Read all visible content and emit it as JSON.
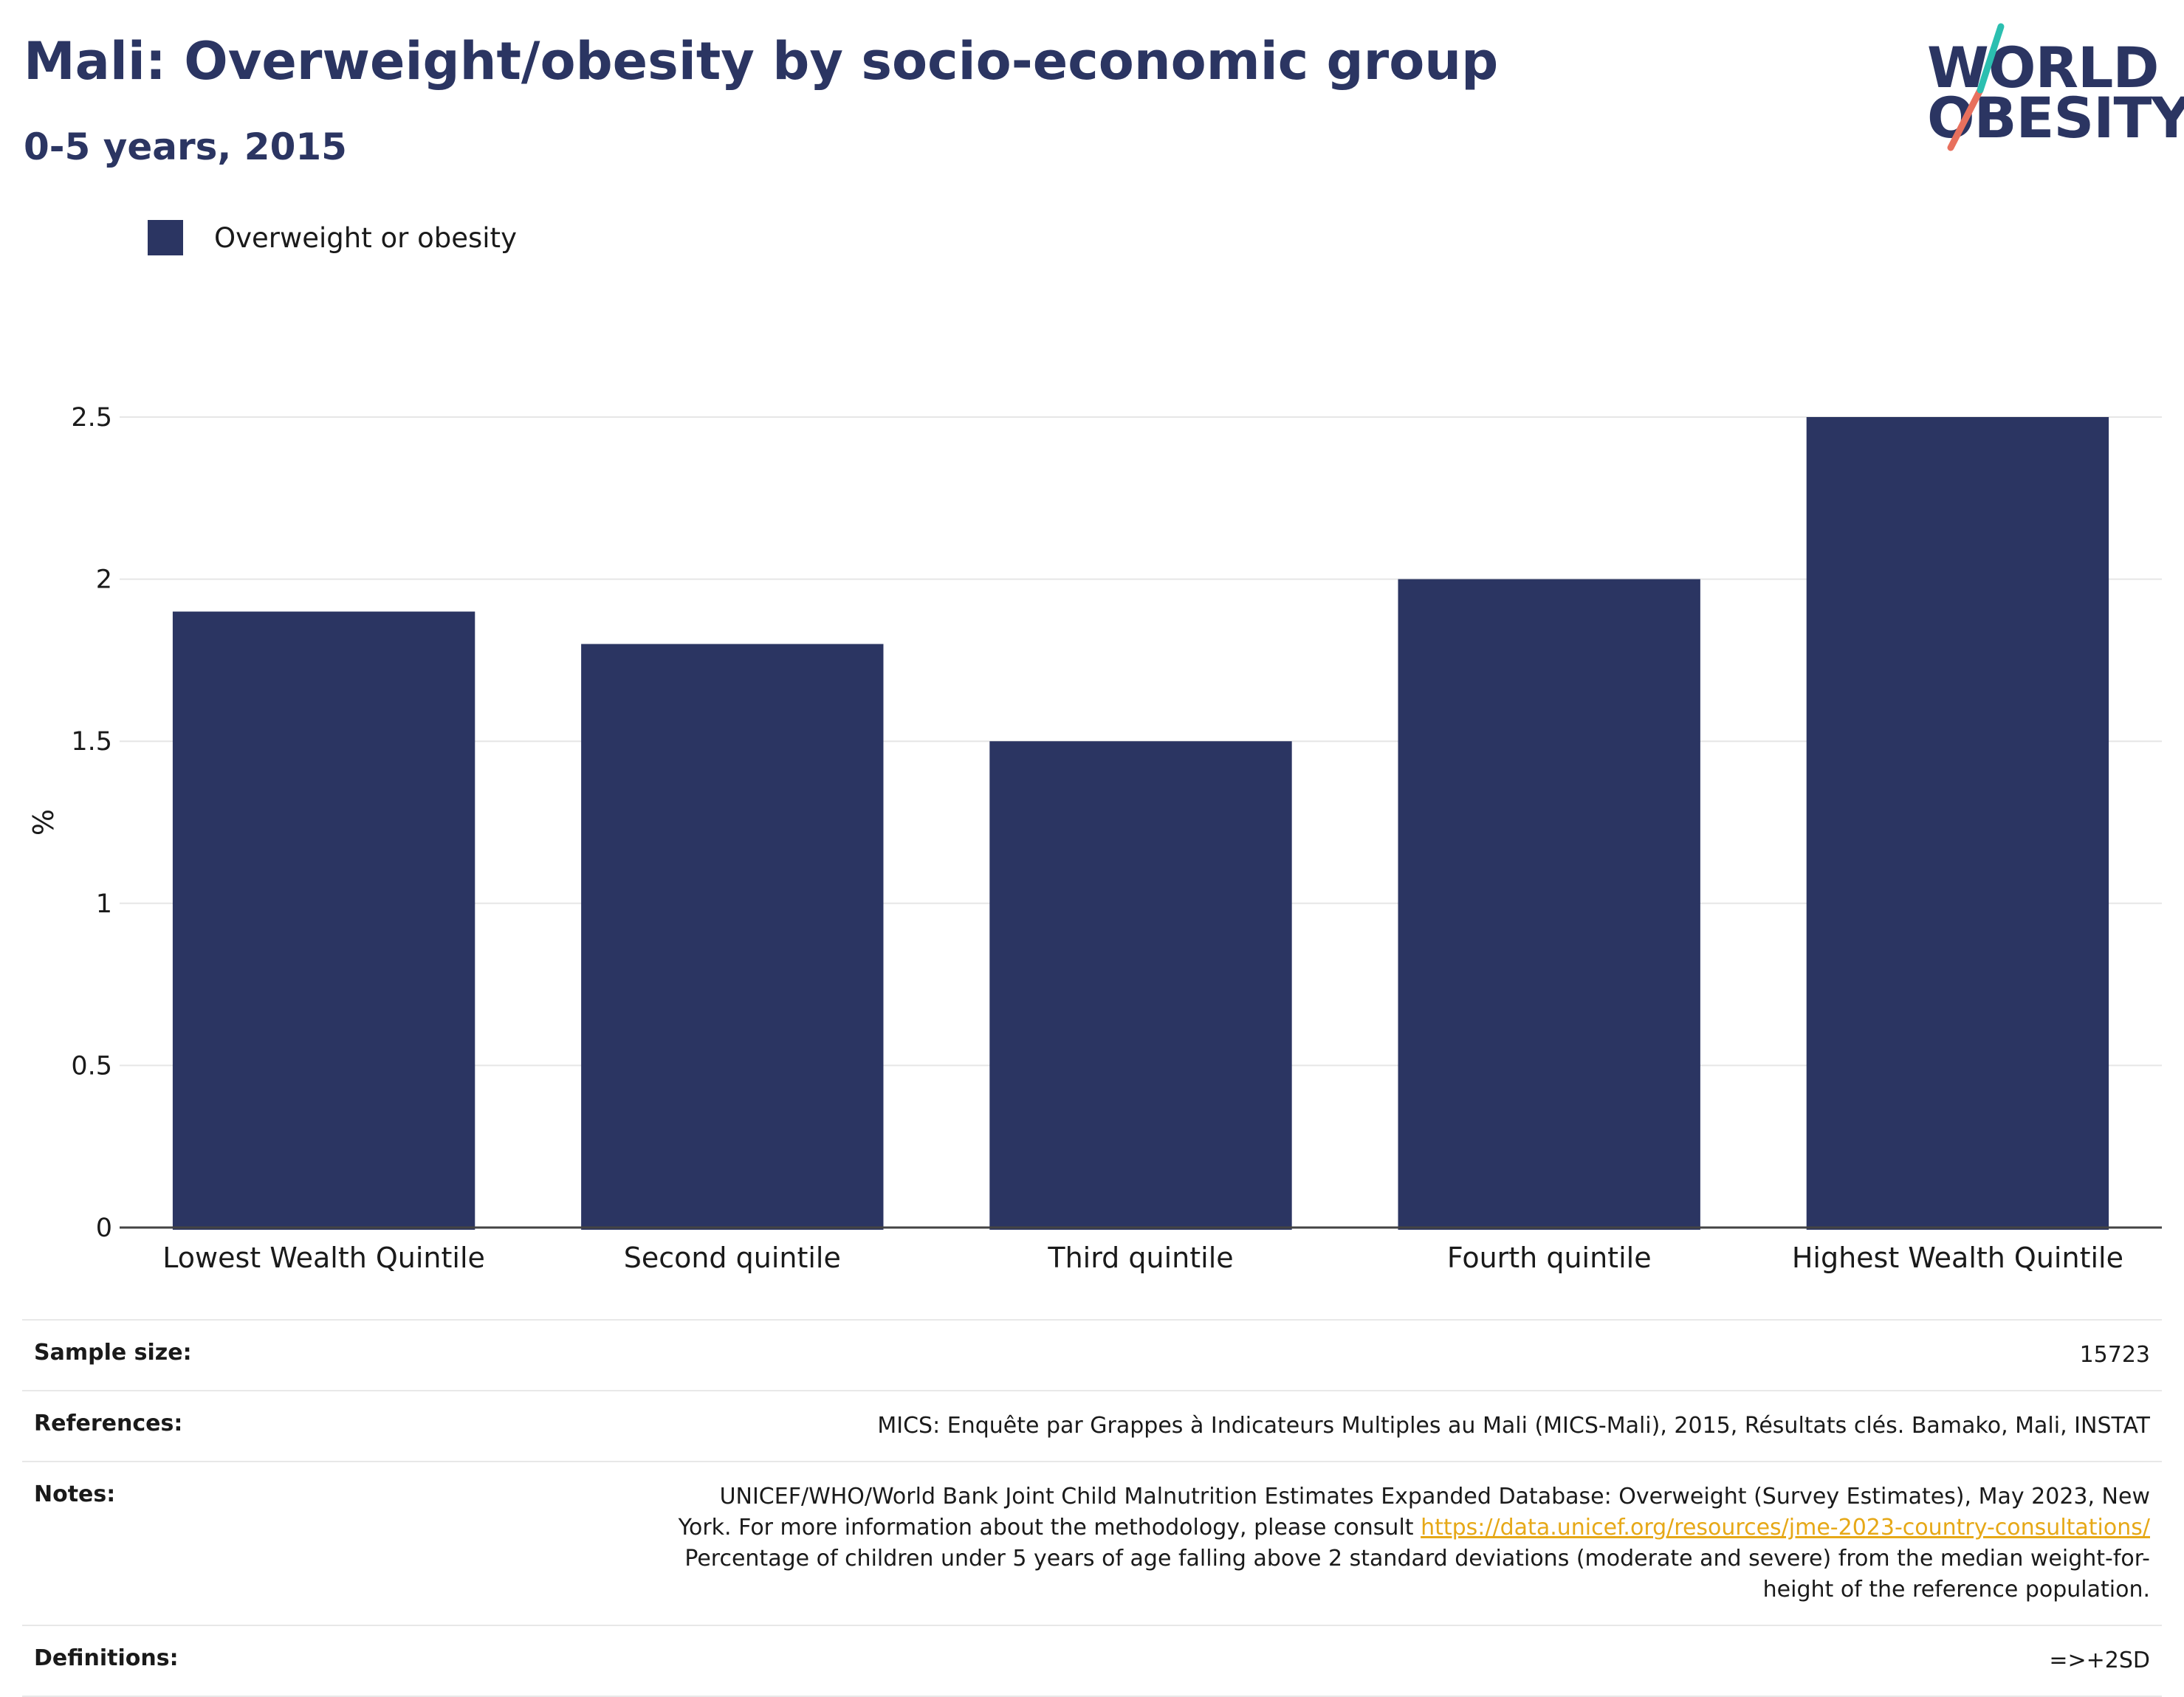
{
  "header": {
    "title": "Mali: Overweight/obesity by socio-economic group",
    "subtitle": "0-5 years, 2015"
  },
  "logo": {
    "line1": "WORLD",
    "line2": "OBESITY",
    "colors": {
      "navy": "#2b3562",
      "teal": "#2bbfb0",
      "coral": "#e8705d"
    }
  },
  "legend": {
    "items": [
      {
        "label": "Overweight or obesity",
        "color": "#2b3562"
      }
    ]
  },
  "chart_data": {
    "type": "bar",
    "categories": [
      "Lowest Wealth Quintile",
      "Second quintile",
      "Third quintile",
      "Fourth quintile",
      "Highest Wealth Quintile"
    ],
    "series": [
      {
        "name": "Overweight or obesity",
        "values": [
          1.9,
          1.8,
          1.5,
          2.0,
          2.5
        ],
        "color": "#2b3562"
      }
    ],
    "title": "",
    "xlabel": "",
    "ylabel": "%",
    "ylim": [
      0,
      2.5
    ],
    "yticks": [
      0,
      0.5,
      1,
      1.5,
      2,
      2.5
    ],
    "ytick_labels": [
      "0",
      "0.5",
      "1",
      "1.5",
      "2",
      "2.5"
    ],
    "grid": true,
    "legend_position": "top-left"
  },
  "info": {
    "sample_size_label": "Sample size:",
    "sample_size_value": "15723",
    "references_label": "References:",
    "references_value": "MICS: Enquête par Grappes à Indicateurs Multiples au Mali (MICS-Mali), 2015, Résultats clés. Bamako, Mali, INSTAT",
    "notes_label": "Notes:",
    "notes_line1": "UNICEF/WHO/World Bank Joint Child Malnutrition Estimates Expanded Database: Overweight (Survey Estimates), May 2023, New",
    "notes_line2": "York. For more information about the methodology, please consult",
    "notes_link": "https://data.unicef.org/resources/jme-2023-country-consultations/",
    "notes_line3": "Percentage of children under 5 years of age falling above 2 standard deviations (moderate and severe) from the median weight-for-",
    "notes_line4": "height of the reference population.",
    "definitions_label": "Definitions:",
    "definitions_value": "=>+2SD"
  }
}
